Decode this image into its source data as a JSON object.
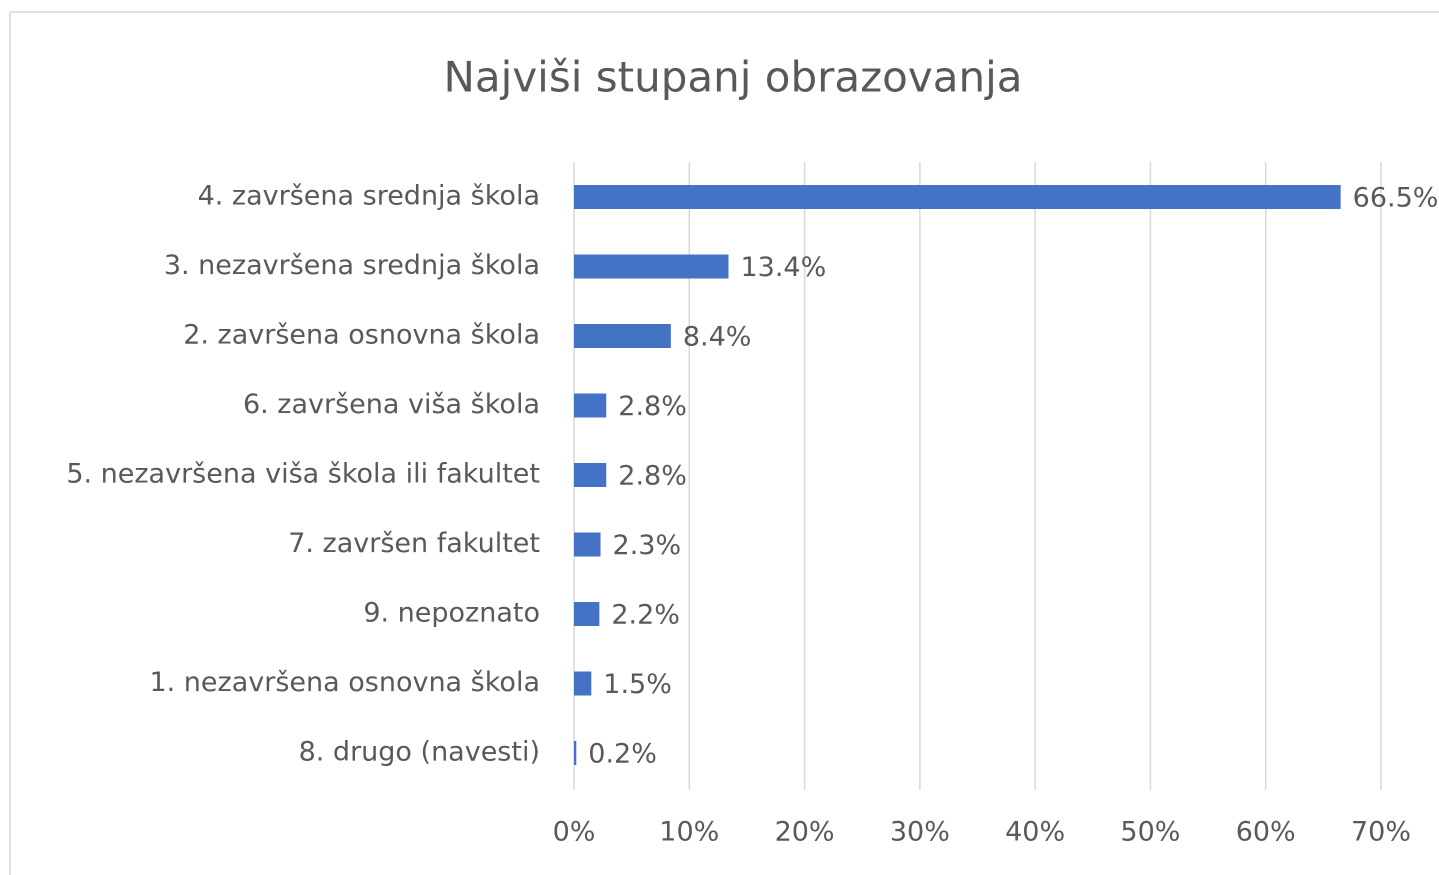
{
  "chart_data": {
    "type": "bar",
    "orientation": "horizontal",
    "title": "Najviši stupanj obrazovanja",
    "categories": [
      "4. završena srednja škola",
      "3. nezavršena srednja škola",
      "2. završena osnovna škola",
      "6. završena viša škola",
      "5. nezavršena viša škola ili fakultet",
      "7. završen fakultet",
      "9. nepoznato",
      "1. nezavršena osnovna škola",
      "8. drugo (navesti)"
    ],
    "values": [
      66.5,
      13.4,
      8.4,
      2.8,
      2.8,
      2.3,
      2.2,
      1.5,
      0.2
    ],
    "value_labels": [
      "66.5%",
      "13.4%",
      "8.4%",
      "2.8%",
      "2.8%",
      "2.3%",
      "2.2%",
      "1.5%",
      "0.2%"
    ],
    "color": "#4472c4",
    "xlim": [
      0,
      70
    ],
    "xticks": [
      {
        "value": 0,
        "label": "0%"
      },
      {
        "value": 10,
        "label": "10%"
      },
      {
        "value": 20,
        "label": "20%"
      },
      {
        "value": 30,
        "label": "30%"
      },
      {
        "value": 40,
        "label": "40%"
      },
      {
        "value": 50,
        "label": "50%"
      },
      {
        "value": 60,
        "label": "60%"
      },
      {
        "value": 70,
        "label": "70%"
      }
    ],
    "grid": true
  }
}
